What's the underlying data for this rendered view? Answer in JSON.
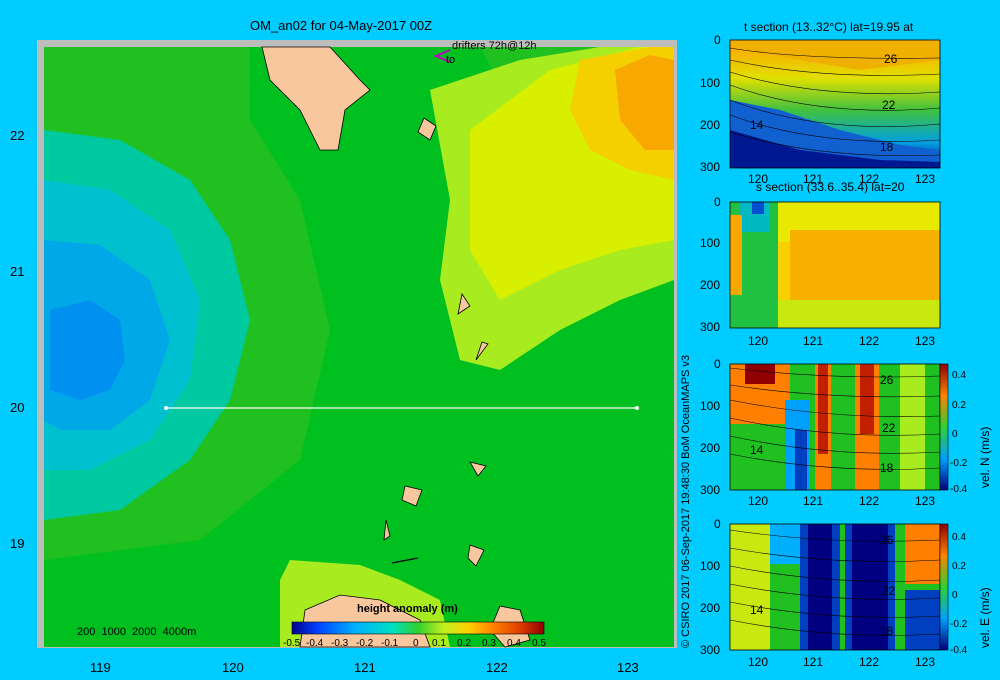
{
  "main_map": {
    "title": "OM_an02 for 04-May-2017 00Z",
    "drifters_label": "drifters 72h@12h",
    "drifters_sub": "to",
    "lat_ticks": [
      "22",
      "21",
      "20",
      "19"
    ],
    "lon_ticks": [
      "119",
      "120",
      "121",
      "122",
      "123"
    ],
    "depth_legend": "200  1000  2000  4000m",
    "colorbar_title": "height anomaly (m)",
    "colorbar_ticks": [
      "-0.5",
      "-0.4",
      "-0.3",
      "-0.2",
      "-0.1",
      "0",
      "0.1",
      "0.2",
      "0.3",
      "0.4",
      "0.5"
    ],
    "colors": {
      "land": "#f9c79d",
      "border": "#bdbdbd",
      "section_line": "#ffffff"
    }
  },
  "credit": "© CSIRO 2017   06-Sep-2017 19:48:30 BoM OceanMAPS v3",
  "panels": {
    "t_section": {
      "title": "t section (13..32°C) lat=19.95 at",
      "y_ticks": [
        "0",
        "100",
        "200",
        "300"
      ],
      "x_ticks": [
        "120",
        "121",
        "122",
        "123"
      ],
      "contour_labels": [
        "26",
        "22",
        "18",
        "14"
      ]
    },
    "s_section": {
      "title": "s section (33.6..35.4) lat=20",
      "y_ticks": [
        "0",
        "100",
        "200",
        "300"
      ],
      "x_ticks": [
        "120",
        "121",
        "122",
        "123"
      ]
    },
    "vel_n": {
      "axis_label": "vel. N (m/s)",
      "y_ticks": [
        "0",
        "100",
        "200",
        "300"
      ],
      "x_ticks": [
        "120",
        "121",
        "122",
        "123"
      ],
      "contour_labels": [
        "26",
        "22",
        "18",
        "14"
      ],
      "colorbar_ticks": [
        "0.4",
        "0.2",
        "0",
        "-0.2",
        "-0.4"
      ]
    },
    "vel_e": {
      "axis_label": "vel. E (m/s)",
      "y_ticks": [
        "0",
        "100",
        "200",
        "300"
      ],
      "x_ticks": [
        "120",
        "121",
        "122",
        "123"
      ],
      "contour_labels": [
        "26",
        "22",
        "18",
        "14"
      ],
      "colorbar_ticks": [
        "0.4",
        "0.2",
        "0",
        "-0.2",
        "-0.4"
      ]
    }
  }
}
